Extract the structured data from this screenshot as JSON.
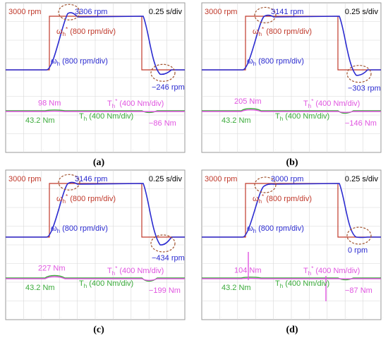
{
  "colors": {
    "reference": "#c0392b",
    "speed": "#2a2ad0",
    "torque_ref": "#e055e0",
    "torque": "#3aaa3a",
    "grid": "#d8d8d8",
    "frame": "#9a9a9a",
    "circle": "#a0522d"
  },
  "chart_data": [
    {
      "id": "a",
      "type": "line",
      "caption": "(a)",
      "time_scale": "0.25 s/div",
      "labels": {
        "ref_speed": "3000 rpm",
        "peak_speed": "3306 rpm",
        "min_speed": "−246 rpm",
        "omega_ref": "ωh* (800 rpm/div)",
        "omega": "ωh (800 rpm/div)",
        "torque_ref": "Th* (400 Nm/div)",
        "torque": "Th (400 Nm/div)",
        "torque_peak": "98 Nm",
        "torque_level": "43.2 Nm",
        "torque_neg": "−86 Nm"
      },
      "values": {
        "ref_rpm": 3000,
        "peak_rpm": 3306,
        "min_rpm": -246,
        "torque_peak_nm": 98,
        "torque_level_nm": 43.2,
        "torque_neg_nm": -86
      }
    },
    {
      "id": "b",
      "type": "line",
      "caption": "(b)",
      "time_scale": "0.25 s/div",
      "labels": {
        "ref_speed": "3000 rpm",
        "peak_speed": "3141 rpm",
        "min_speed": "−303 rpm",
        "omega_ref": "ωh* (800 rpm/div)",
        "omega": "ωh (800 rpm/div)",
        "torque_ref": "Th* (400 Nm/div)",
        "torque": "Th (400 Nm/div)",
        "torque_peak": "205 Nm",
        "torque_level": "43.2 Nm",
        "torque_neg": "−146 Nm"
      },
      "values": {
        "ref_rpm": 3000,
        "peak_rpm": 3141,
        "min_rpm": -303,
        "torque_peak_nm": 205,
        "torque_level_nm": 43.2,
        "torque_neg_nm": -146
      }
    },
    {
      "id": "c",
      "type": "line",
      "caption": "(c)",
      "time_scale": "0.25 s/div",
      "labels": {
        "ref_speed": "3000 rpm",
        "peak_speed": "3146 rpm",
        "min_speed": "−434 rpm",
        "omega_ref": "ωh* (800 rpm/div)",
        "omega": "ωh (800 rpm/div)",
        "torque_ref": "Th* (400 Nm/div)",
        "torque": "Th (400 Nm/div)",
        "torque_peak": "227 Nm",
        "torque_level": "43.2 Nm",
        "torque_neg": "−199 Nm"
      },
      "values": {
        "ref_rpm": 3000,
        "peak_rpm": 3146,
        "min_rpm": -434,
        "torque_peak_nm": 227,
        "torque_level_nm": 43.2,
        "torque_neg_nm": -199
      }
    },
    {
      "id": "d",
      "type": "line",
      "caption": "(d)",
      "time_scale": "0.25 s/div",
      "labels": {
        "ref_speed": "3000 rpm",
        "peak_speed": "3000 rpm",
        "min_speed": "0 rpm",
        "omega_ref": "ωh* (800 rpm/div)",
        "omega": "ωh (800 rpm/div)",
        "torque_ref": "Th* (400 Nm/div)",
        "torque": "Th (400 Nm/div)",
        "torque_peak": "104 Nm",
        "torque_level": "43.2 Nm",
        "torque_neg": "−87 Nm"
      },
      "values": {
        "ref_rpm": 3000,
        "peak_rpm": 3000,
        "min_rpm": 0,
        "torque_peak_nm": 104,
        "torque_level_nm": 43.2,
        "torque_neg_nm": -87
      }
    }
  ]
}
